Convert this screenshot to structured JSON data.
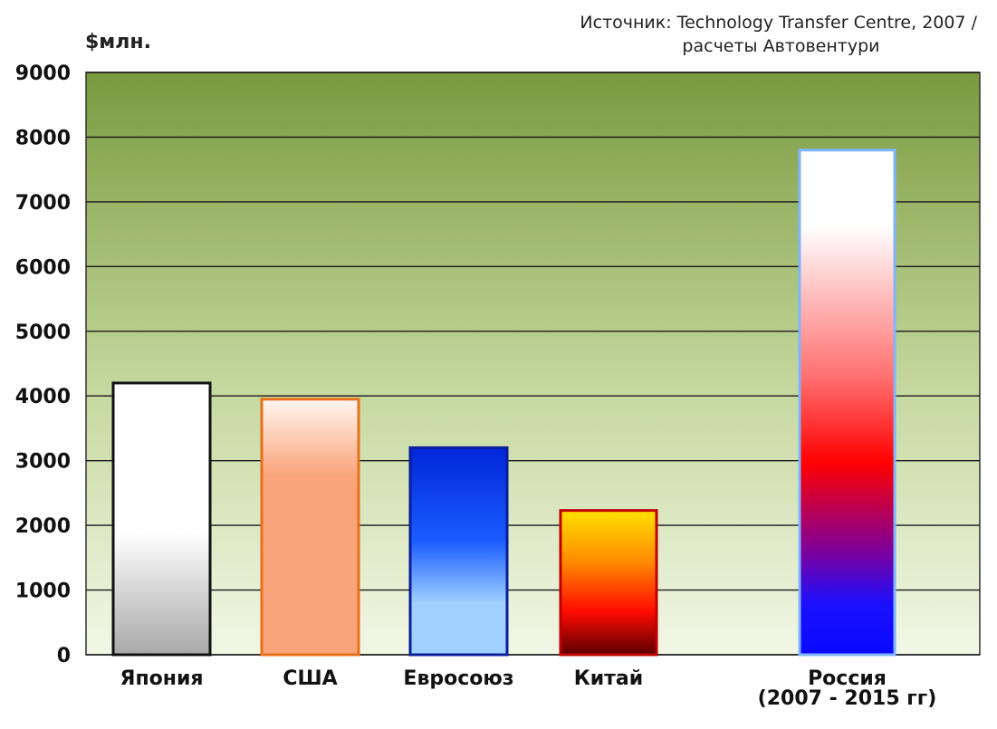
{
  "source": {
    "line1": "Источник: Technology Transfer Centre, 2007 /",
    "line2": "расчеты Автовентури"
  },
  "chart_data": {
    "type": "bar",
    "title": "",
    "ylabel": "$млн.",
    "xlabel": "",
    "ylim": [
      0,
      9000
    ],
    "yticks": [
      0,
      1000,
      2000,
      3000,
      4000,
      5000,
      6000,
      7000,
      8000,
      9000
    ],
    "grid": true,
    "categories": [
      {
        "label": "Япония",
        "sub": ""
      },
      {
        "label": "США",
        "sub": ""
      },
      {
        "label": "Евросоюз",
        "sub": ""
      },
      {
        "label": "Китай",
        "sub": ""
      },
      {
        "label": "Россия",
        "sub": "(2007 - 2015 гг)"
      }
    ],
    "values": [
      4200,
      3950,
      3200,
      2230,
      7800
    ],
    "bar_styles": [
      {
        "border": "#111111",
        "stops": [
          [
            "0",
            "#ffffff"
          ],
          [
            "0.55",
            "#ffffff"
          ],
          [
            "1",
            "#a8a8a8"
          ]
        ]
      },
      {
        "border": "#e8701a",
        "stops": [
          [
            "0",
            "#fff6f0"
          ],
          [
            "0.3",
            "#f9a47a"
          ],
          [
            "1",
            "#f9a47a"
          ]
        ]
      },
      {
        "border": "#0a1e99",
        "stops": [
          [
            "0",
            "#0026d9"
          ],
          [
            "0.45",
            "#1a5cff"
          ],
          [
            "0.75",
            "#9fd0ff"
          ],
          [
            "1",
            "#9fd0ff"
          ]
        ]
      },
      {
        "border": "#c00000",
        "stops": [
          [
            "0",
            "#ffe100"
          ],
          [
            "0.35",
            "#ff8c00"
          ],
          [
            "0.7",
            "#ff0a00"
          ],
          [
            "1",
            "#5a0000"
          ]
        ]
      },
      {
        "border": "#7fb4ff",
        "stops": [
          [
            "0",
            "#ffffff"
          ],
          [
            "0.15",
            "#ffffff"
          ],
          [
            "0.45",
            "#ff7070"
          ],
          [
            "0.62",
            "#ff0000"
          ],
          [
            "0.8",
            "#7a00a0"
          ],
          [
            "0.9",
            "#1a10ff"
          ],
          [
            "1",
            "#0a0aff"
          ]
        ]
      }
    ],
    "colors": {
      "plot_top": "#7a9a3e",
      "plot_bottom": "#f2f7e6",
      "grid": "#1a1a1a"
    }
  }
}
